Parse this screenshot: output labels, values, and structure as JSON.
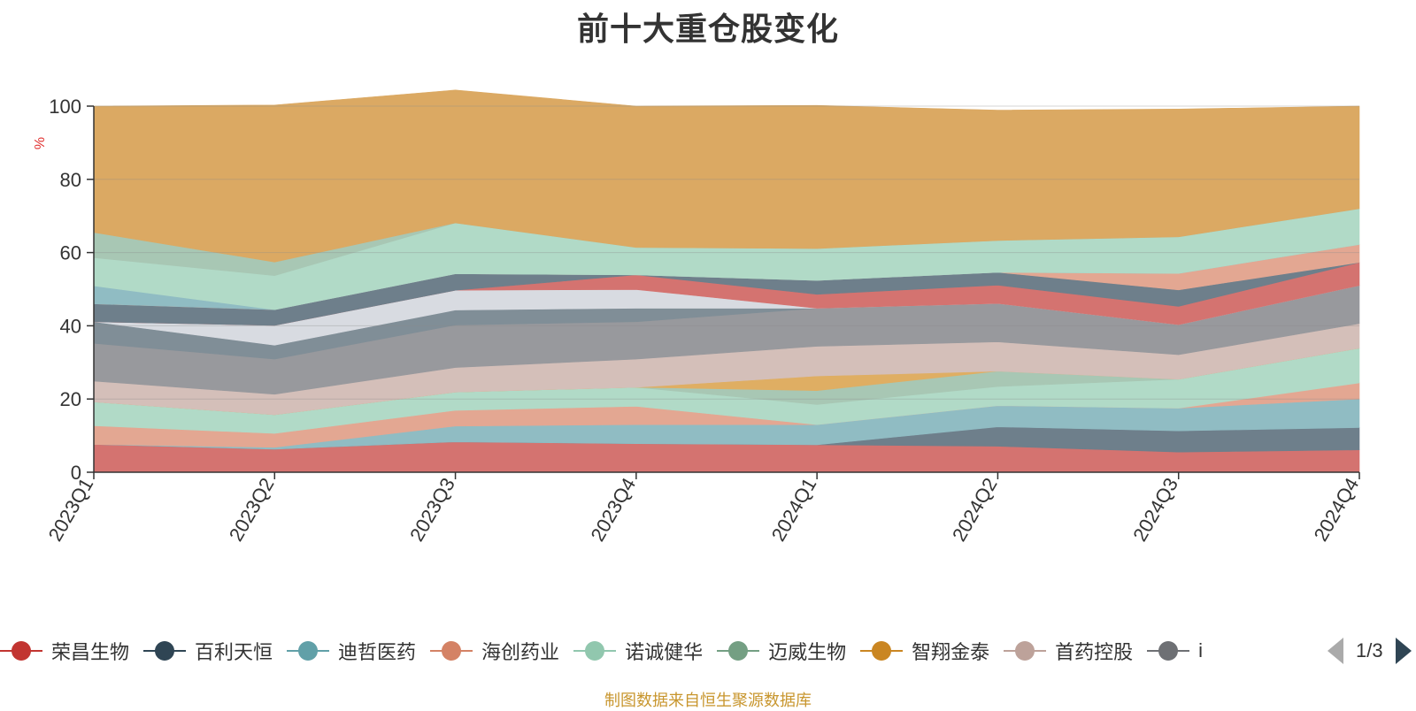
{
  "title": "前十大重仓股变化",
  "source_note": "制图数据来自恒生聚源数据库",
  "legend": {
    "page_info": "1/3",
    "items": [
      {
        "label": "荣昌生物",
        "color": "#c23531"
      },
      {
        "label": "百利天恒",
        "color": "#2f4554"
      },
      {
        "label": "迪哲医药",
        "color": "#61a0a8"
      },
      {
        "label": "海创药业",
        "color": "#d48265"
      },
      {
        "label": "诺诚健华",
        "color": "#91c7ae"
      },
      {
        "label": "迈威生物",
        "color": "#749f83"
      },
      {
        "label": "智翔金泰",
        "color": "#ca8622"
      },
      {
        "label": "首药控股",
        "color": "#bda29a"
      },
      {
        "label": "i",
        "color": "#6e7074"
      }
    ]
  },
  "chart_data": {
    "type": "area",
    "stacked": true,
    "ylabel": "%",
    "ylim": [
      0,
      100
    ],
    "yticks": [
      0,
      20,
      40,
      60,
      80,
      100
    ],
    "categories": [
      "2023Q1",
      "2023Q2",
      "2023Q3",
      "2023Q4",
      "2024Q1",
      "2024Q2",
      "2024Q3",
      "2024Q4"
    ],
    "grid": true,
    "series": [
      {
        "color": "#d47370",
        "values": [
          7.6,
          6.3,
          8.3,
          7.8,
          7.5,
          7.1,
          5.5,
          6.1
        ]
      },
      {
        "color": "#6e7f8b",
        "values": [
          0,
          0,
          0,
          0,
          0,
          5.3,
          5.8,
          6.1
        ]
      },
      {
        "color": "#90bcc3",
        "values": [
          0,
          0.5,
          4.3,
          5.2,
          5.5,
          5.8,
          6.2,
          7.8
        ]
      },
      {
        "color": "#e3a792",
        "values": [
          5.1,
          3.8,
          4.3,
          5.0,
          0,
          0,
          0,
          4.4
        ]
      },
      {
        "color": "#b1dac7",
        "values": [
          6.5,
          5.1,
          5.0,
          5.2,
          5.5,
          5.2,
          7.9,
          9.5
        ]
      },
      {
        "color": "#a8c7b4",
        "values": [
          0,
          0,
          0,
          0,
          3.8,
          4.2,
          0,
          0
        ]
      },
      {
        "color": "#dfae63",
        "values": [
          0,
          0,
          0,
          0,
          4.0,
          0,
          0,
          0
        ]
      },
      {
        "color": "#d4bfb9",
        "values": [
          5.7,
          5.6,
          6.7,
          7.7,
          8.1,
          8.0,
          6.7,
          6.7
        ]
      },
      {
        "color": "#98999d",
        "values": [
          10.3,
          9.6,
          11.6,
          10.2,
          10.4,
          10.5,
          8.2,
          10.4
        ]
      },
      {
        "color": "#808e97",
        "values": [
          5.9,
          3.8,
          4.1,
          3.7,
          0,
          0,
          0,
          0
        ]
      },
      {
        "color": "#d8dbe1",
        "values": [
          0,
          5.4,
          5.4,
          5.1,
          0,
          0,
          0,
          0
        ]
      },
      {
        "color": "#d47370",
        "values": [
          0,
          0,
          0,
          4.0,
          3.8,
          5.0,
          5.0,
          6.3
        ]
      },
      {
        "color": "#6e7f8b",
        "values": [
          4.9,
          4.3,
          4.5,
          0,
          3.8,
          3.5,
          4.5,
          0
        ]
      },
      {
        "color": "#e3a792",
        "values": [
          0,
          0,
          0,
          0,
          0,
          0,
          4.5,
          4.9
        ]
      },
      {
        "color": "#90bcc3",
        "values": [
          4.9,
          0,
          0,
          0,
          0,
          0,
          0,
          0
        ]
      },
      {
        "color": "#b1dac7",
        "values": [
          7.7,
          9.3,
          13.9,
          7.5,
          8.7,
          8.7,
          10.0,
          9.8
        ]
      },
      {
        "color": "#a8c7b4",
        "values": [
          6.9,
          3.7,
          0,
          0,
          0,
          0,
          0,
          0
        ]
      },
      {
        "color": "#dba963",
        "values": [
          34.5,
          42.9,
          36.3,
          38.6,
          39.1,
          35.6,
          34.9,
          28.0
        ]
      }
    ]
  }
}
